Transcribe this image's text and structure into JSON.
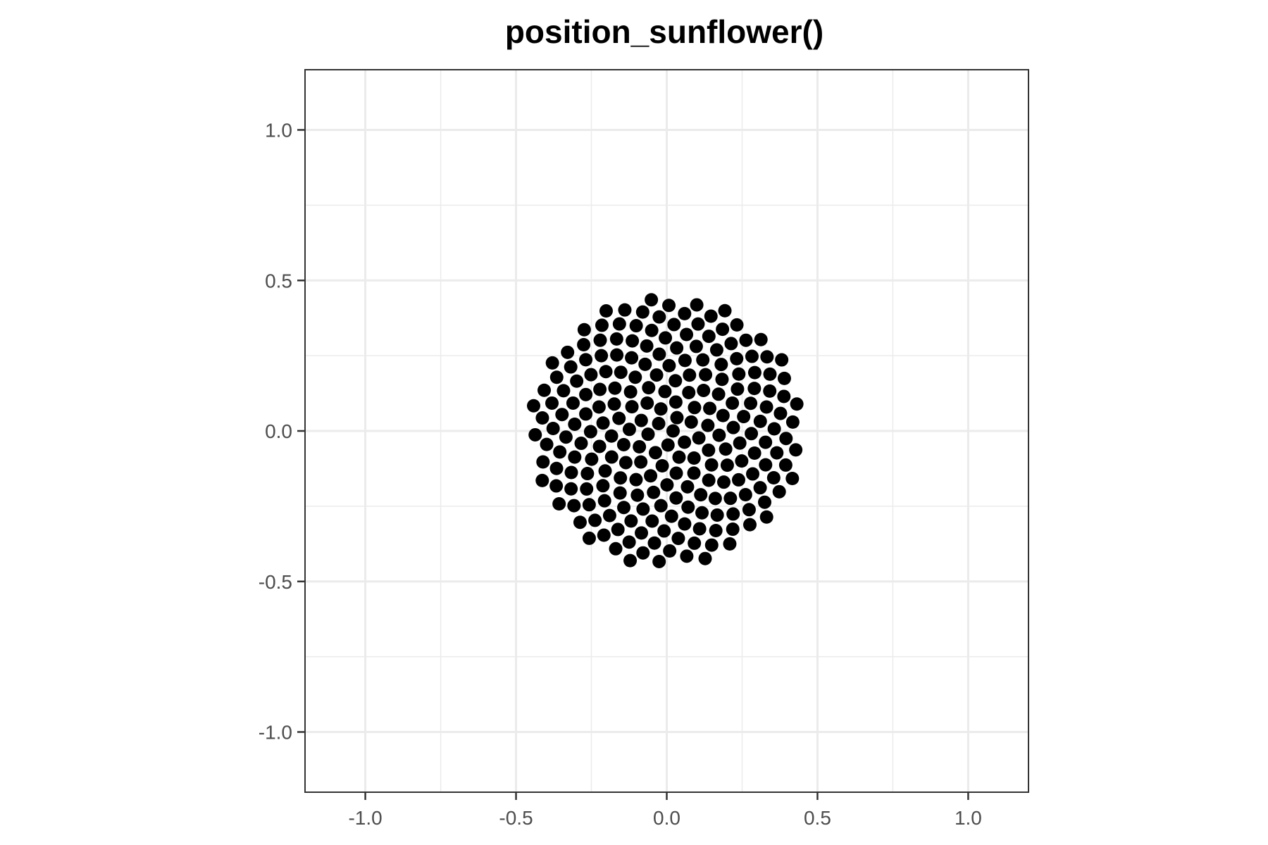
{
  "chart_data": {
    "type": "scatter",
    "title": "position_sunflower()",
    "xlabel": "",
    "ylabel": "",
    "xlim": [
      -1.2,
      1.2
    ],
    "ylim": [
      -1.2,
      1.2
    ],
    "x_ticks": [
      -1.0,
      -0.5,
      0.0,
      0.5,
      1.0
    ],
    "y_ticks": [
      -1.0,
      -0.5,
      0.0,
      0.5,
      1.0
    ],
    "x_tick_labels": [
      "-1.0",
      "-0.5",
      "0.0",
      "0.5",
      "1.0"
    ],
    "y_tick_labels": [
      "-1.0",
      "-0.5",
      "0.0",
      "0.5",
      "1.0"
    ],
    "grid": true,
    "points": {
      "layout": "sunflower (golden-angle spiral)",
      "n": 230,
      "center": [
        0.0,
        0.0
      ],
      "max_radius": 0.45,
      "color": "#000000"
    }
  }
}
